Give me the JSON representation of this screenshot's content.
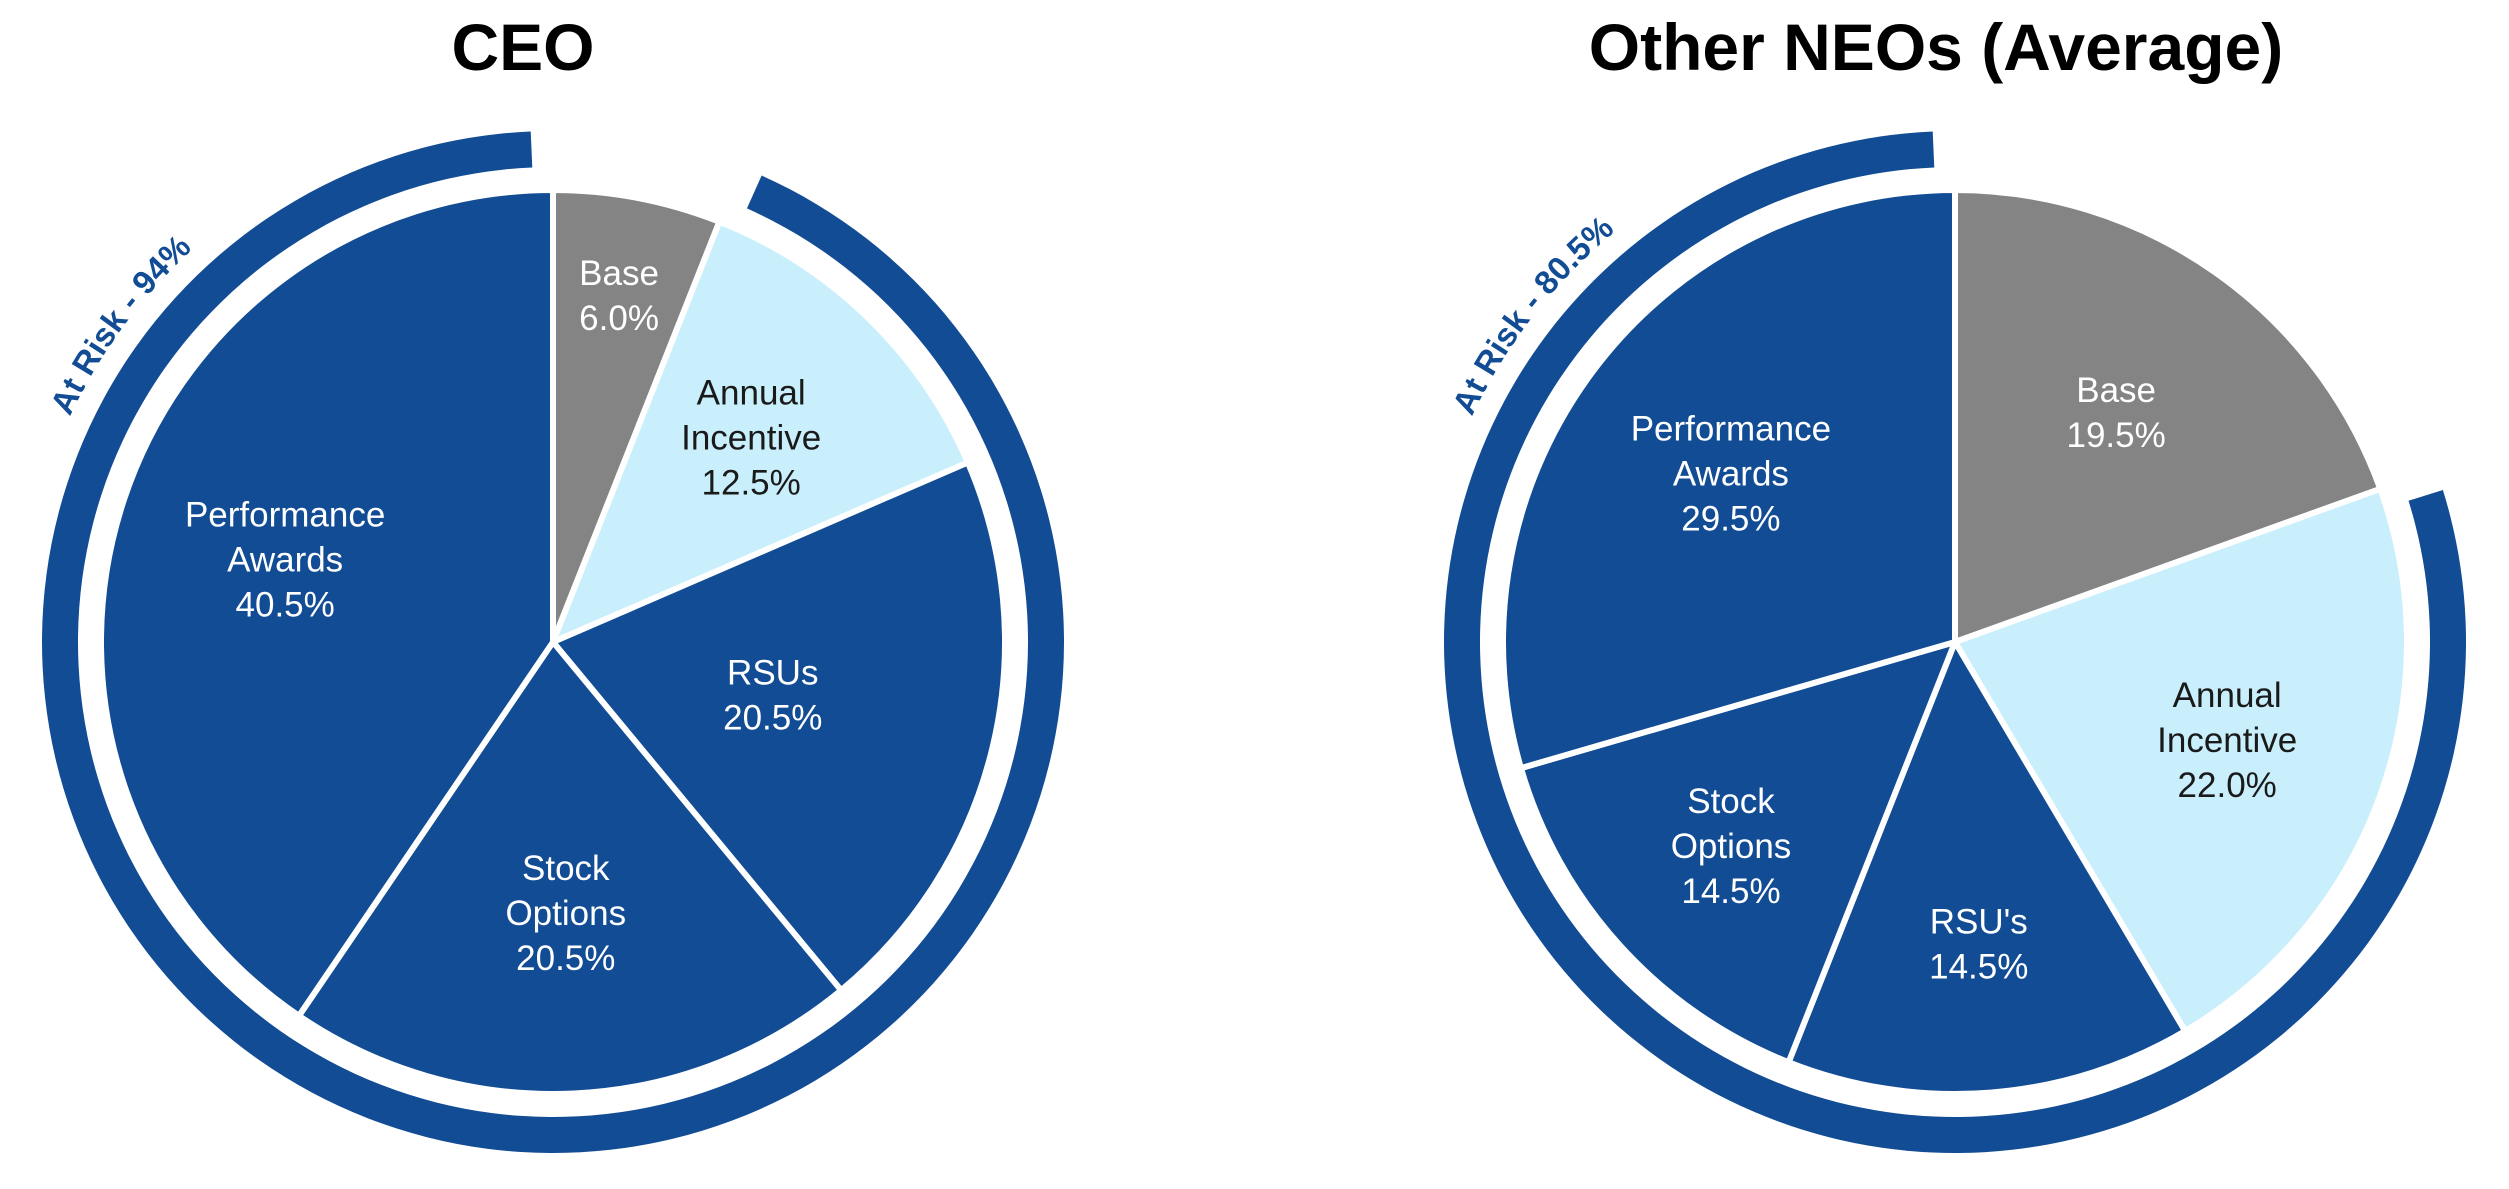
{
  "colors": {
    "navy": "#124C94",
    "gray": "#848484",
    "light_blue": "#C8EFFB",
    "white": "#FFFFFF",
    "black": "#1A1A1A"
  },
  "chart_data": [
    {
      "type": "pie",
      "title": "CEO",
      "at_risk_label": "At Risk - 94%",
      "at_risk_percent": 94,
      "slices": [
        {
          "name": "Base",
          "value": 6.0,
          "label_lines": [
            "Base",
            "6.0%"
          ],
          "color": "#848484",
          "text_color": "#FFFFFF"
        },
        {
          "name": "Annual Incentive",
          "value": 12.5,
          "label_lines": [
            "Annual",
            "Incentive",
            "12.5%"
          ],
          "color": "#C8EFFB",
          "text_color": "#1A1A1A"
        },
        {
          "name": "RSUs",
          "value": 20.5,
          "label_lines": [
            "RSUs",
            "20.5%"
          ],
          "color": "#124C94",
          "text_color": "#FFFFFF"
        },
        {
          "name": "Stock Options",
          "value": 20.5,
          "label_lines": [
            "Stock",
            "Options",
            "20.5%"
          ],
          "color": "#124C94",
          "text_color": "#FFFFFF"
        },
        {
          "name": "Performance Awards",
          "value": 40.5,
          "label_lines": [
            "Performance",
            "Awards",
            "40.5%"
          ],
          "color": "#124C94",
          "text_color": "#FFFFFF"
        }
      ]
    },
    {
      "type": "pie",
      "title": "Other NEOs (Average)",
      "at_risk_label": "At Risk - 80.5%",
      "at_risk_percent": 80.5,
      "slices": [
        {
          "name": "Base",
          "value": 19.5,
          "label_lines": [
            "Base",
            "19.5%"
          ],
          "color": "#848484",
          "text_color": "#FFFFFF"
        },
        {
          "name": "Annual Incentive",
          "value": 22.0,
          "label_lines": [
            "Annual",
            "Incentive",
            "22.0%"
          ],
          "color": "#C8EFFB",
          "text_color": "#1A1A1A"
        },
        {
          "name": "RSU's",
          "value": 14.5,
          "label_lines": [
            "RSU's",
            "14.5%"
          ],
          "color": "#124C94",
          "text_color": "#FFFFFF"
        },
        {
          "name": "Stock Options",
          "value": 14.5,
          "label_lines": [
            "Stock",
            "Options",
            "14.5%"
          ],
          "color": "#124C94",
          "text_color": "#FFFFFF"
        },
        {
          "name": "Performance Awards",
          "value": 29.5,
          "label_lines": [
            "Performance",
            "Awards",
            "29.5%"
          ],
          "color": "#124C94",
          "text_color": "#FFFFFF"
        }
      ]
    }
  ]
}
